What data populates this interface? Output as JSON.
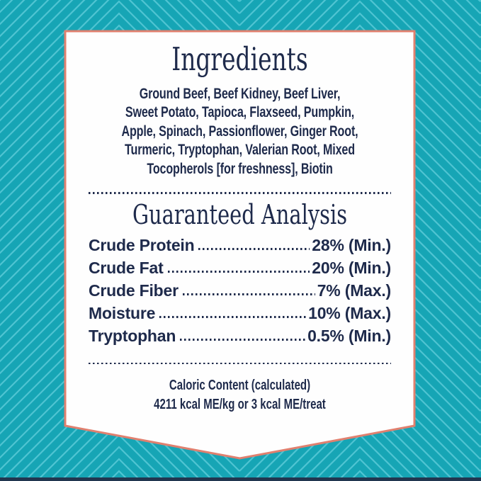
{
  "colors": {
    "background_teal": "#16a5b5",
    "pattern_line": "#4fc4d2",
    "card_border_coral": "#e0806f",
    "card_fill": "#fefefe",
    "text_navy": "#1e2a4b",
    "bottom_strip_navy": "#21364f"
  },
  "ingredients": {
    "title": "Ingredients",
    "lines": [
      "Ground Beef, Beef Kidney, Beef Liver,",
      "Sweet Potato, Tapioca, Flaxseed, Pumpkin,",
      "Apple, Spinach, Passionflower, Ginger Root,",
      "Turmeric, Tryptophan, Valerian Root, Mixed",
      "Tocopherols [for freshness], Biotin"
    ]
  },
  "analysis": {
    "title": "Guaranteed Analysis",
    "rows": [
      {
        "label": "Crude Protein",
        "value": "28% (Min.)"
      },
      {
        "label": "Crude Fat",
        "value": "20% (Min.)"
      },
      {
        "label": "Crude Fiber",
        "value": "7% (Max.)"
      },
      {
        "label": "Moisture",
        "value": "10% (Max.)"
      },
      {
        "label": "Tryptophan",
        "value": "0.5% (Min.)"
      }
    ]
  },
  "caloric": {
    "line1": "Caloric Content (calculated)",
    "line2": "4211 kcal ME/kg or 3 kcal ME/treat"
  }
}
